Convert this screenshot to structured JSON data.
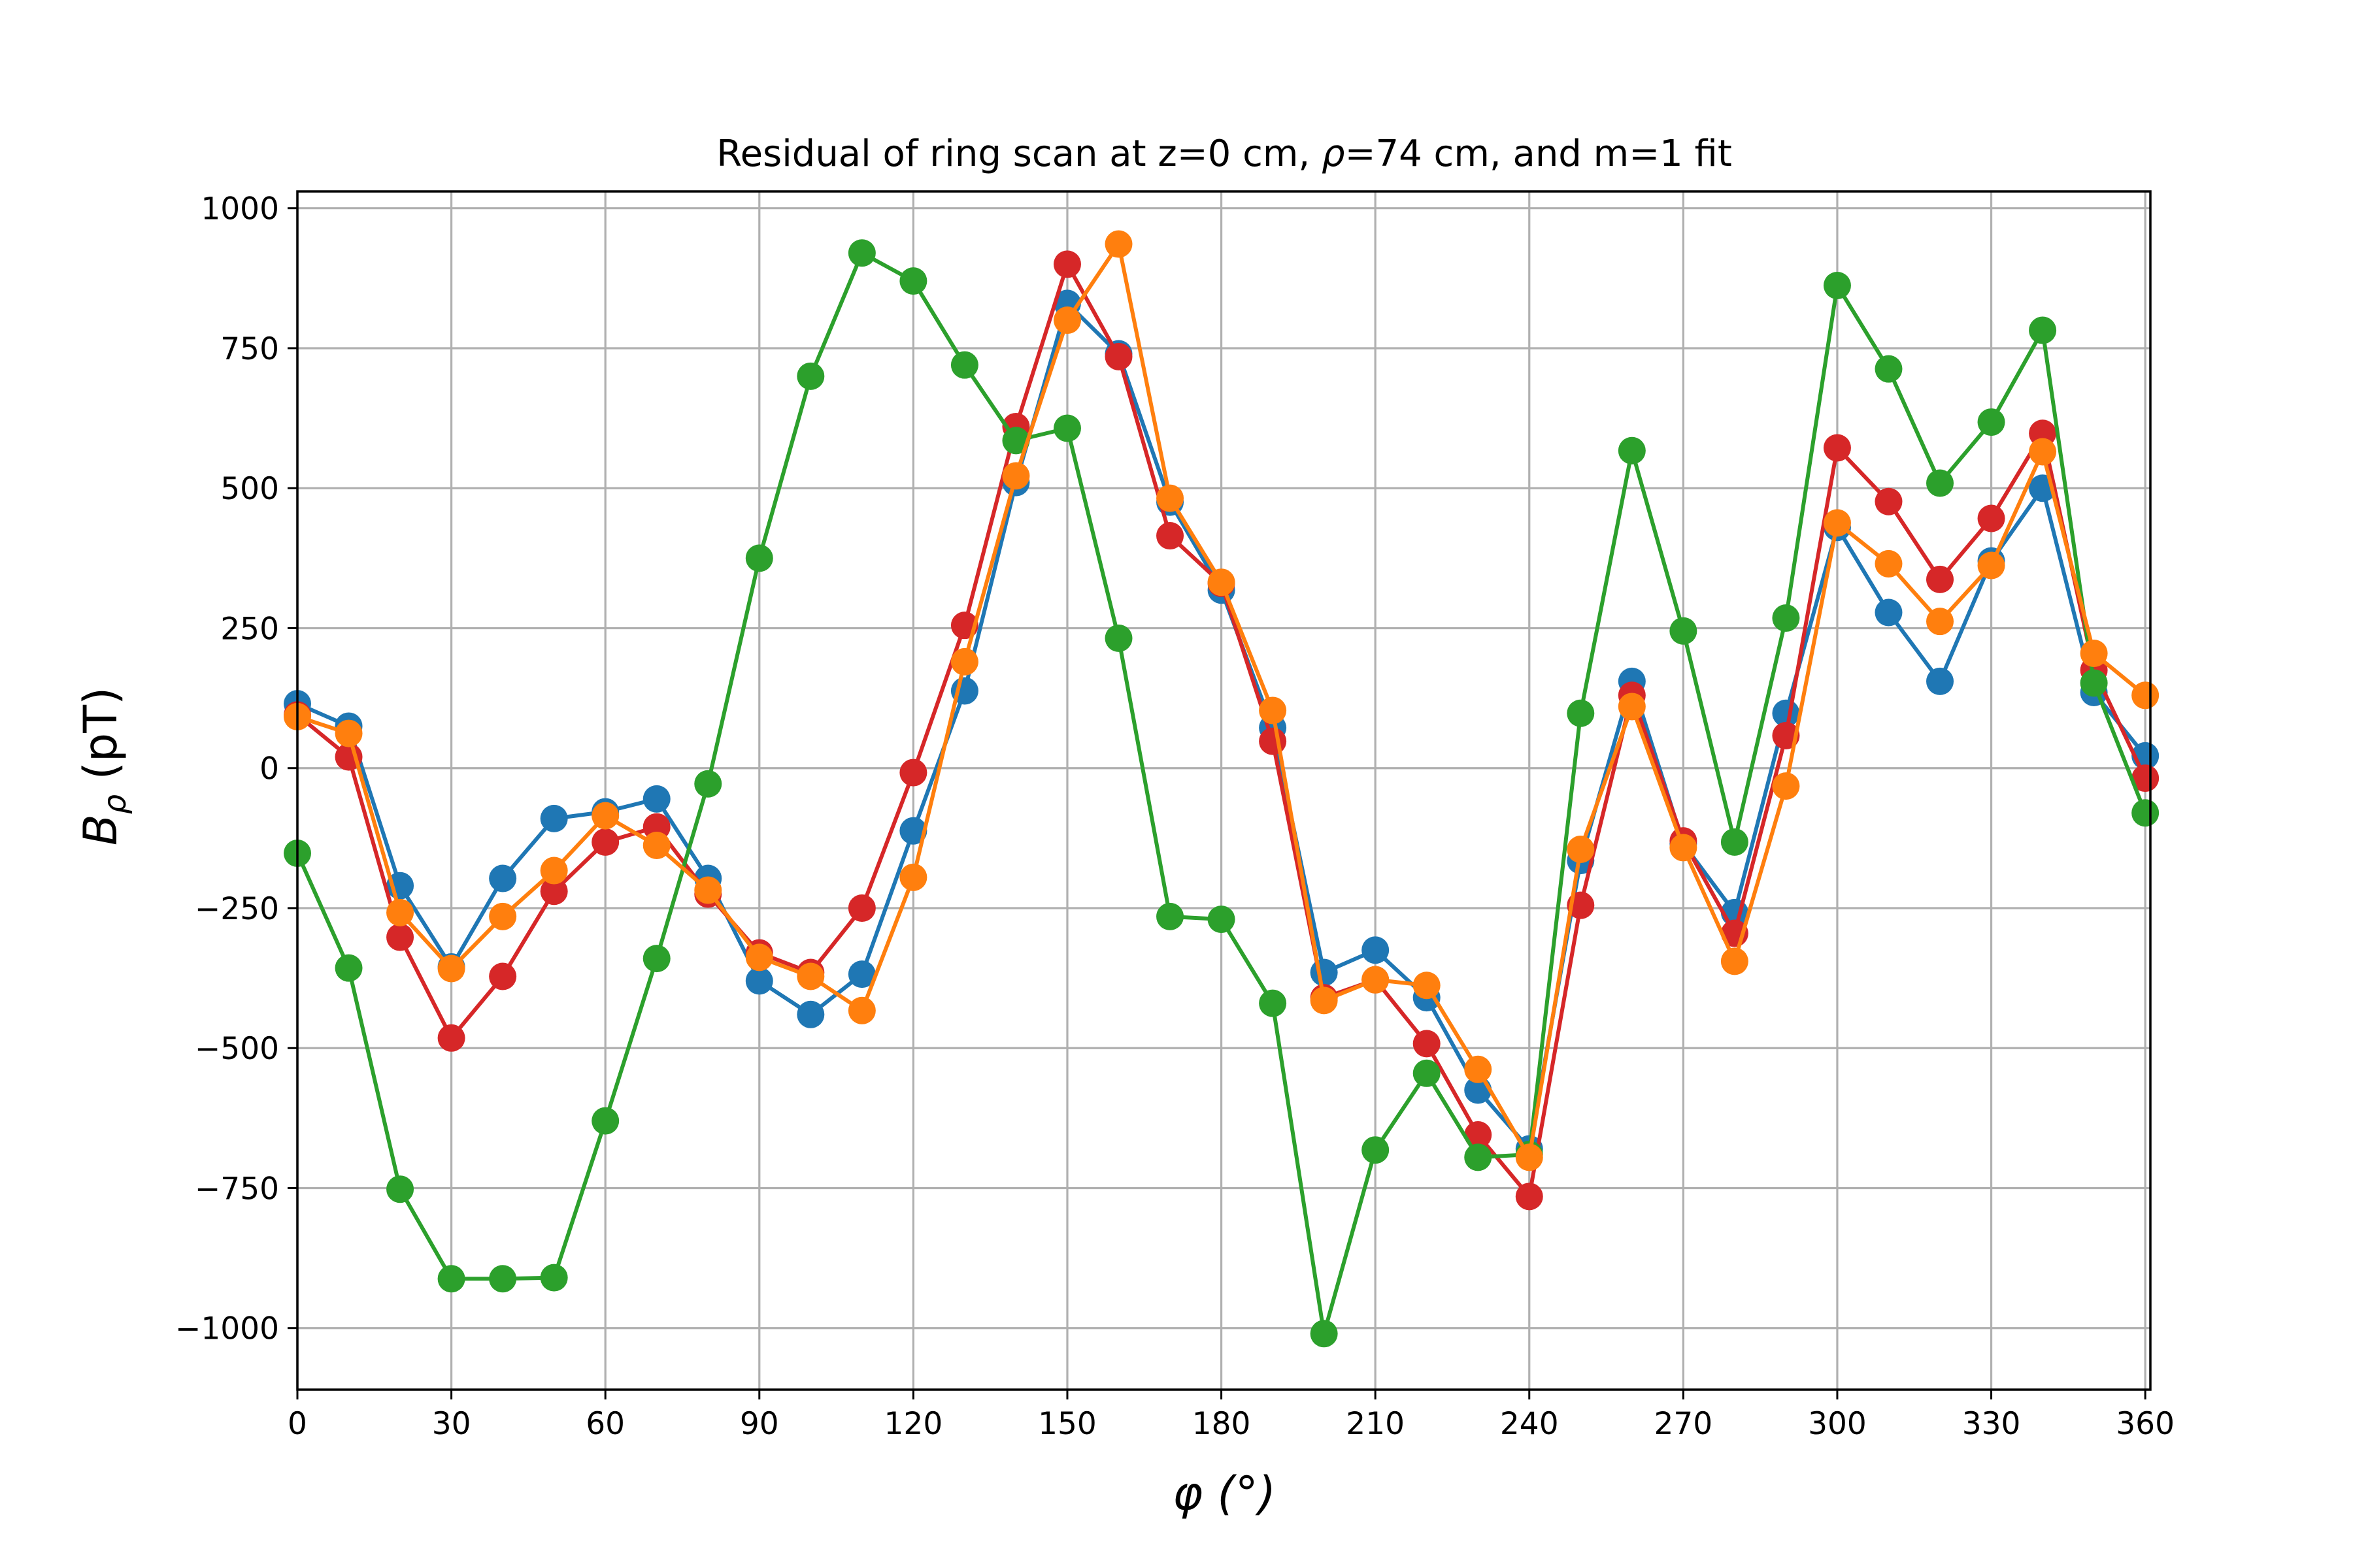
{
  "chart_data": {
    "type": "line",
    "title": "Residual of ring scan at z=0 cm, ρ=74 cm, and m=1 fit",
    "title_parts": {
      "before": "Residual of ring scan at z=0 cm, ",
      "symbol": "ρ",
      "after": "=74 cm, and m=1 fit"
    },
    "xlabel": "φ (°)",
    "ylabel": "Bρ (pT)",
    "ylabel_parts": {
      "base": "B",
      "sub": "ρ",
      "unit": " (pT)"
    },
    "xlim": [
      0,
      361
    ],
    "ylim": [
      -1110,
      1030
    ],
    "xticks": [
      0,
      30,
      60,
      90,
      120,
      150,
      180,
      210,
      240,
      270,
      300,
      330,
      360
    ],
    "yticks": [
      1000,
      750,
      500,
      250,
      0,
      -250,
      -500,
      -750,
      -1000
    ],
    "ytick_labels": [
      "1000",
      "750",
      "500",
      "250",
      "0",
      "−250",
      "−500",
      "−750",
      "−1000"
    ],
    "grid": true,
    "legend": false,
    "x": [
      0,
      10,
      20,
      30,
      40,
      50,
      60,
      70,
      80,
      90,
      100,
      110,
      120,
      130,
      140,
      150,
      160,
      170,
      180,
      190,
      200,
      210,
      220,
      230,
      240,
      250,
      260,
      270,
      280,
      290,
      300,
      310,
      320,
      330,
      340,
      350,
      360
    ],
    "series": [
      {
        "color": "#1f77b4",
        "values": [
          115,
          75,
          -210,
          -355,
          -197,
          -90,
          -78,
          -55,
          -197,
          -380,
          -440,
          -368,
          -112,
          138,
          510,
          830,
          740,
          475,
          318,
          72,
          -365,
          -325,
          -410,
          -575,
          -680,
          -165,
          155,
          -135,
          -258,
          98,
          430,
          278,
          155,
          370,
          500,
          135,
          22
        ]
      },
      {
        "color": "#d62728",
        "values": [
          95,
          20,
          -302,
          -482,
          -372,
          -220,
          -132,
          -105,
          -225,
          -330,
          -365,
          -250,
          -8,
          255,
          610,
          900,
          735,
          415,
          330,
          48,
          -410,
          -378,
          -492,
          -655,
          -765,
          -245,
          130,
          -130,
          -295,
          58,
          572,
          476,
          337,
          446,
          598,
          175,
          -18
        ]
      },
      {
        "color": "#2ca02c",
        "values": [
          -152,
          -357,
          -752,
          -912,
          -912,
          -910,
          -630,
          -340,
          -28,
          375,
          700,
          920,
          870,
          720,
          585,
          607,
          232,
          -265,
          -270,
          -420,
          -1010,
          -682,
          -545,
          -695,
          -690,
          98,
          567,
          245,
          -132,
          268,
          862,
          713,
          509,
          618,
          782,
          152,
          -80
        ]
      },
      {
        "color": "#ff7f0e",
        "values": [
          92,
          62,
          -258,
          -358,
          -265,
          -183,
          -85,
          -138,
          -218,
          -338,
          -372,
          -433,
          -195,
          190,
          522,
          800,
          936,
          482,
          332,
          103,
          -415,
          -378,
          -388,
          -538,
          -695,
          -145,
          110,
          -142,
          -345,
          -32,
          438,
          365,
          262,
          362,
          565,
          205,
          130
        ]
      }
    ]
  }
}
